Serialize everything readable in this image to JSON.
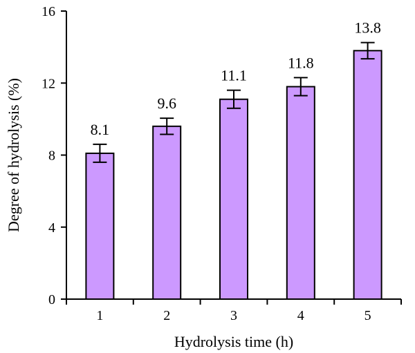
{
  "chart_data": {
    "type": "bar",
    "categories": [
      "1",
      "2",
      "3",
      "4",
      "5"
    ],
    "values": [
      8.1,
      9.6,
      11.1,
      11.8,
      13.8
    ],
    "error": [
      0.5,
      0.45,
      0.5,
      0.5,
      0.45
    ],
    "data_labels": [
      "8.1",
      "9.6",
      "11.1",
      "11.8",
      "13.8"
    ],
    "xlabel": "Hydrolysis time (h)",
    "ylabel": "Degree of hydrolysis (%)",
    "ylim": [
      0,
      16
    ],
    "yticks": [
      0,
      4,
      8,
      12,
      16
    ],
    "grid": false,
    "bar_color": "#cc99ff",
    "bar_edge_color": "#000000"
  }
}
